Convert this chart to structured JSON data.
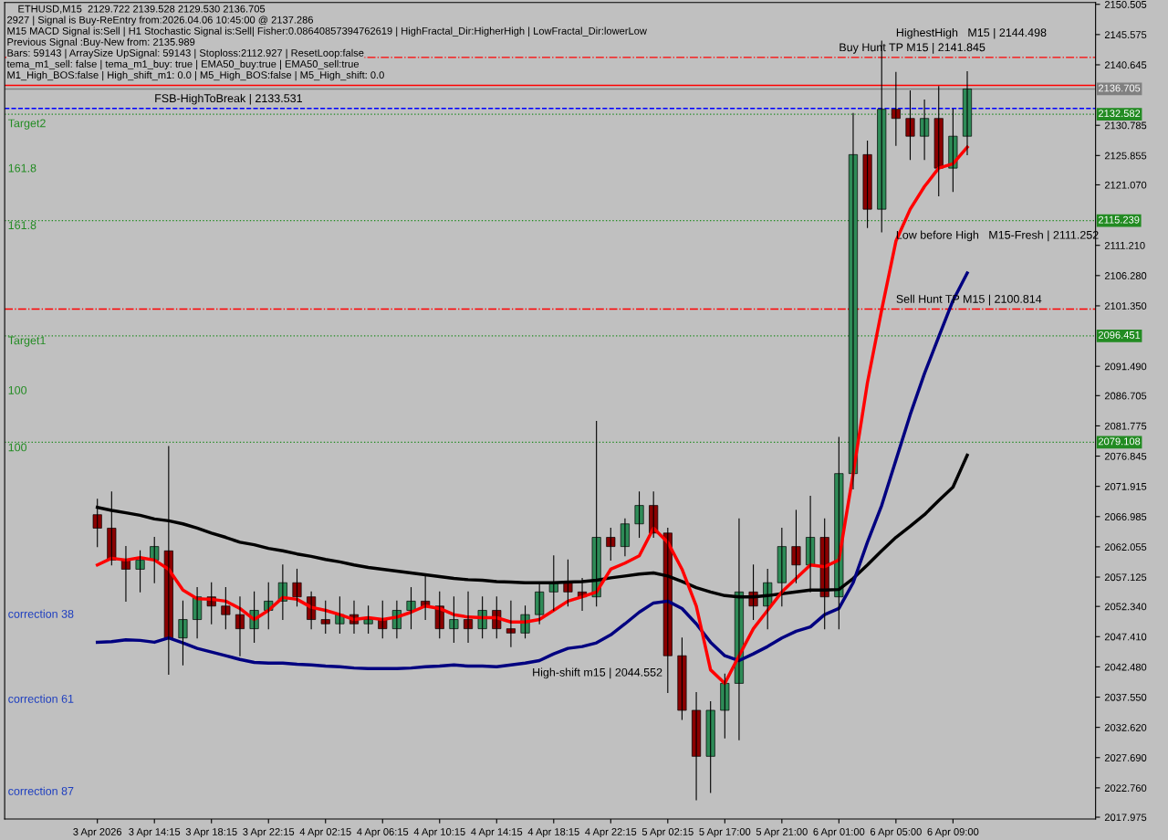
{
  "chart_data": {
    "type": "candlestick",
    "title": "ETHUSD,M15  2129.722 2139.528 2129.530 2136.705",
    "categories": [
      "3 Apr 2026",
      null,
      null,
      null,
      "3 Apr 14:15",
      null,
      null,
      null,
      "3 Apr 18:15",
      null,
      null,
      null,
      "3 Apr 22:15",
      null,
      null,
      null,
      "4 Apr 02:15",
      null,
      null,
      null,
      "4 Apr 06:15",
      null,
      null,
      null,
      "4 Apr 10:15",
      null,
      null,
      null,
      "4 Apr 14:15",
      null,
      null,
      null,
      "4 Apr 18:15",
      null,
      null,
      null,
      "4 Apr 22:15",
      null,
      null,
      null,
      "5 Apr 02:15",
      null,
      null,
      null,
      "5 Apr 17:00",
      null,
      null,
      null,
      "5 Apr 21:00",
      null,
      null,
      null,
      "6 Apr 01:00",
      null,
      null,
      null,
      "6 Apr 05:00",
      null,
      null,
      null,
      "6 Apr 09:00",
      null
    ],
    "ohlc": [
      [
        2067.3,
        2069.8,
        2062.1,
        2065.1
      ],
      [
        2065.1,
        2071.0,
        2059.1,
        2059.9
      ],
      [
        2059.9,
        2062.1,
        2053.2,
        2058.4
      ],
      [
        2058.4,
        2061.4,
        2054.7,
        2059.9
      ],
      [
        2059.9,
        2063.6,
        2056.2,
        2062.1
      ],
      [
        2061.4,
        2078.4,
        2041.3,
        2047.2
      ],
      [
        2047.2,
        2053.2,
        2042.8,
        2050.2
      ],
      [
        2050.2,
        2055.4,
        2047.2,
        2053.9
      ],
      [
        2053.9,
        2056.2,
        2049.5,
        2052.4
      ],
      [
        2052.4,
        2055.4,
        2048.7,
        2051.0
      ],
      [
        2051.0,
        2053.9,
        2044.3,
        2048.7
      ],
      [
        2048.7,
        2054.7,
        2046.5,
        2051.7
      ],
      [
        2051.7,
        2056.2,
        2048.7,
        2053.2
      ],
      [
        2053.2,
        2059.1,
        2050.2,
        2056.2
      ],
      [
        2056.2,
        2058.4,
        2052.4,
        2053.9
      ],
      [
        2053.9,
        2054.7,
        2048.7,
        2050.2
      ],
      [
        2050.2,
        2053.2,
        2048.0,
        2049.5
      ],
      [
        2049.5,
        2053.9,
        2048.0,
        2051.0
      ],
      [
        2051.0,
        2053.2,
        2048.0,
        2049.5
      ],
      [
        2049.5,
        2052.4,
        2048.0,
        2050.2
      ],
      [
        2050.2,
        2053.2,
        2047.2,
        2048.7
      ],
      [
        2048.7,
        2053.2,
        2047.2,
        2051.7
      ],
      [
        2051.7,
        2055.4,
        2048.7,
        2053.2
      ],
      [
        2053.2,
        2057.6,
        2050.2,
        2052.4
      ],
      [
        2052.4,
        2054.7,
        2047.2,
        2048.7
      ],
      [
        2048.7,
        2053.9,
        2046.5,
        2050.2
      ],
      [
        2050.2,
        2054.7,
        2046.5,
        2048.7
      ],
      [
        2048.7,
        2053.9,
        2047.2,
        2051.7
      ],
      [
        2051.7,
        2053.9,
        2047.2,
        2048.7
      ],
      [
        2048.7,
        2053.2,
        2045.8,
        2048.0
      ],
      [
        2048.0,
        2052.4,
        2047.2,
        2051.0
      ],
      [
        2051.0,
        2056.2,
        2049.5,
        2054.7
      ],
      [
        2054.7,
        2060.6,
        2051.7,
        2056.2
      ],
      [
        2056.2,
        2059.9,
        2052.4,
        2054.7
      ],
      [
        2054.7,
        2056.9,
        2051.7,
        2053.9
      ],
      [
        2053.9,
        2082.5,
        2052.4,
        2063.6
      ],
      [
        2063.6,
        2065.1,
        2059.9,
        2062.1
      ],
      [
        2062.1,
        2066.6,
        2060.6,
        2065.8
      ],
      [
        2065.8,
        2071.0,
        2063.6,
        2068.8
      ],
      [
        2068.8,
        2071.0,
        2063.6,
        2064.3
      ],
      [
        2064.3,
        2065.1,
        2038.3,
        2044.3
      ],
      [
        2044.3,
        2047.2,
        2033.9,
        2035.4
      ],
      [
        2035.4,
        2038.3,
        2020.8,
        2027.9
      ],
      [
        2027.9,
        2036.8,
        2022.0,
        2035.4
      ],
      [
        2035.4,
        2041.3,
        2030.9,
        2039.8
      ],
      [
        2039.8,
        2066.6,
        2030.6,
        2054.7
      ],
      [
        2054.7,
        2059.1,
        2050.2,
        2052.4
      ],
      [
        2052.4,
        2058.4,
        2048.7,
        2056.2
      ],
      [
        2056.2,
        2065.1,
        2052.4,
        2062.1
      ],
      [
        2062.1,
        2068.0,
        2056.2,
        2059.1
      ],
      [
        2059.1,
        2070.3,
        2054.7,
        2063.6
      ],
      [
        2063.6,
        2066.6,
        2048.7,
        2053.9
      ],
      [
        2053.9,
        2079.9,
        2048.7,
        2074.0
      ],
      [
        2074.0,
        2132.7,
        2071.5,
        2126.0
      ],
      [
        2126.0,
        2128.2,
        2114.1,
        2117.1
      ],
      [
        2117.1,
        2144.5,
        2113.4,
        2133.4
      ],
      [
        2133.4,
        2139.4,
        2127.5,
        2131.9
      ],
      [
        2131.9,
        2136.4,
        2125.2,
        2129.0
      ],
      [
        2129.0,
        2134.9,
        2125.2,
        2131.9
      ],
      [
        2131.9,
        2137.1,
        2119.3,
        2123.8
      ],
      [
        2123.8,
        2133.4,
        2120.0,
        2129.0
      ],
      [
        2129.0,
        2139.5,
        2126.0,
        2136.705
      ]
    ],
    "series": [
      {
        "type": "line",
        "color": "#000000",
        "values": [
          2068.5,
          2068.0,
          2067.6,
          2067.2,
          2066.6,
          2066.3,
          2065.8,
          2065.1,
          2064.3,
          2063.6,
          2062.8,
          2062.4,
          2061.8,
          2061.4,
          2060.9,
          2060.5,
          2060.0,
          2059.6,
          2059.1,
          2058.7,
          2058.4,
          2058.1,
          2057.8,
          2057.5,
          2057.2,
          2056.9,
          2056.7,
          2056.6,
          2056.4,
          2056.3,
          2056.2,
          2056.2,
          2056.2,
          2056.3,
          2056.4,
          2056.6,
          2057.0,
          2057.3,
          2057.6,
          2057.8,
          2057.3,
          2056.4,
          2055.4,
          2054.7,
          2054.1,
          2053.9,
          2053.9,
          2054.1,
          2054.4,
          2054.7,
          2055.0,
          2055.0,
          2055.1,
          2056.9,
          2059.1,
          2061.4,
          2063.6,
          2065.4,
          2067.3,
          2069.6,
          2071.8,
          2077.0
        ]
      },
      {
        "type": "line",
        "color": "#000080",
        "values": [
          2046.5,
          2046.6,
          2046.9,
          2046.8,
          2046.5,
          2047.2,
          2046.4,
          2045.5,
          2044.9,
          2044.3,
          2043.7,
          2043.2,
          2043.1,
          2043.1,
          2042.9,
          2042.8,
          2042.6,
          2042.5,
          2042.3,
          2042.2,
          2042.2,
          2042.2,
          2042.3,
          2042.5,
          2042.6,
          2042.8,
          2042.6,
          2042.6,
          2042.5,
          2042.8,
          2043.1,
          2043.5,
          2044.6,
          2045.5,
          2045.8,
          2046.4,
          2047.7,
          2049.5,
          2051.4,
          2052.9,
          2053.2,
          2052.0,
          2049.5,
          2046.5,
          2044.3,
          2043.5,
          2044.6,
          2045.8,
          2047.2,
          2048.3,
          2049.0,
          2051.0,
          2052.0,
          2056.2,
          2062.8,
          2068.8,
          2076.2,
          2083.6,
          2090.3,
          2096.3,
          2102.2,
          2106.7
        ]
      },
      {
        "type": "line",
        "color": "#ff0000",
        "values": [
          2059.1,
          2060.2,
          2059.9,
          2060.3,
          2059.9,
          2058.4,
          2055.0,
          2053.6,
          2053.5,
          2053.2,
          2052.0,
          2050.2,
          2051.7,
          2053.8,
          2053.5,
          2052.2,
          2051.7,
          2051.0,
          2050.2,
          2050.5,
          2050.2,
          2050.6,
          2051.4,
          2052.4,
          2052.0,
          2051.0,
          2050.6,
          2050.5,
          2050.5,
          2049.8,
          2049.8,
          2050.2,
          2051.7,
          2053.2,
          2053.9,
          2054.7,
          2058.4,
          2059.4,
          2060.6,
          2065.1,
          2062.8,
          2058.4,
          2052.4,
          2042.0,
          2039.8,
          2044.3,
          2048.7,
          2051.7,
          2054.7,
          2056.9,
          2059.1,
          2058.8,
          2059.9,
          2074.0,
          2088.8,
          2100.7,
          2111.9,
          2117.1,
          2120.8,
          2123.8,
          2124.5,
          2127.2
        ]
      }
    ],
    "ylim": [
      2017.68,
      2150.8
    ],
    "yticks": [
      2150.505,
      2145.575,
      2140.645,
      2130.785,
      2125.855,
      {
        "value": 2121.07,
        "label": "2121.070"
      },
      {
        "value": 2111.21,
        "label": "2111.210"
      },
      {
        "value": 2106.28,
        "label": "2106.280"
      },
      {
        "value": 2101.35,
        "label": "2101.350"
      },
      {
        "value": 2091.49,
        "label": "2091.490"
      },
      2086.705,
      2081.775,
      2076.845,
      2071.915,
      2066.985,
      2062.055,
      2057.125,
      {
        "value": 2052.34,
        "label": "2052.340"
      },
      {
        "value": 2047.41,
        "label": "2047.410"
      },
      {
        "value": 2042.48,
        "label": "2042.480"
      },
      {
        "value": 2037.55,
        "label": "2037.550"
      },
      {
        "value": 2032.62,
        "label": "2032.620"
      },
      {
        "value": 2027.69,
        "label": "2027.690"
      },
      {
        "value": 2022.76,
        "label": "2022.760"
      },
      2017.975
    ],
    "grid": false,
    "ref_lines": [
      {
        "axis": "y",
        "value": 2141.845,
        "label": null,
        "color": "#ff0000",
        "line_style": "dashdot"
      },
      {
        "axis": "y",
        "value": 2137.286,
        "label": null,
        "color": "#ff0000",
        "line_style": "solid"
      },
      {
        "axis": "y",
        "value": 2136.705,
        "label": "2136.705",
        "color": "#808080",
        "line_style": "solid"
      },
      {
        "axis": "y",
        "value": 2133.531,
        "label": null,
        "color": "#0000ff",
        "line_style": "dashed"
      },
      {
        "axis": "y",
        "value": 2132.582,
        "label": "2132.582",
        "color": "#228b22",
        "line_style": "dotted"
      },
      {
        "axis": "y",
        "value": 2115.239,
        "label": "2115.239",
        "color": "#228b22",
        "line_style": "dotted"
      },
      {
        "axis": "y",
        "value": 2100.814,
        "label": null,
        "color": "#ff0000",
        "line_style": "dashdot"
      },
      {
        "axis": "y",
        "value": 2096.451,
        "label": "2096.451",
        "color": "#228b22",
        "line_style": "dotted"
      },
      {
        "axis": "y",
        "value": 2079.108,
        "label": "2079.108",
        "color": "#228b22",
        "line_style": "dotted"
      }
    ],
    "annotations": [
      "2927 | Signal is Buy-ReEntry from:2026.04.06 10:45:00 @ 2137.286",
      "M15 MACD Signal is:Sell | H1 Stochastic Signal is:Sell| Fisher:0.08640857394762619 | HighFractal_Dir:HigherHigh | LowFractal_Dir:lowerLow",
      "Previous Signal :Buy-New from: 2135.989",
      "Bars: 59143 | ArraySize UpSignal: 59143 | Stoploss:2112.927 | ResetLoop:false",
      "tema_m1_sell: false | tema_m1_buy: true | EMA50_buy:true | EMA50_sell:true",
      "M1_High_BOS:false | High_shift_m1: 0.0 | M5_High_BOS:false | M5_High_shift: 0.0",
      {
        "text": "FSB-HighToBreak | 2133.531",
        "x": "3 Apr 14:15",
        "y": 2133.531
      },
      {
        "text": "Buy Hunt TP M15 | 2141.845",
        "x": "6 Apr 01:00",
        "y": 2141.845
      },
      {
        "text": "Low before High   M15-Fresh | 2111.252",
        "x": "6 Apr 05:00",
        "y": 2111.252
      },
      {
        "text": "Sell Hunt TP M15 | 2100.814",
        "x": "6 Apr 05:00",
        "y": 2100.814
      },
      "HighestHigh   M15 | 2144.498",
      "High-shift m15 | 2044.552",
      "Target2",
      "161.8",
      "161.8",
      "Target1",
      "100",
      "100",
      "correction 38",
      "correction 61",
      "correction 87"
    ]
  }
}
